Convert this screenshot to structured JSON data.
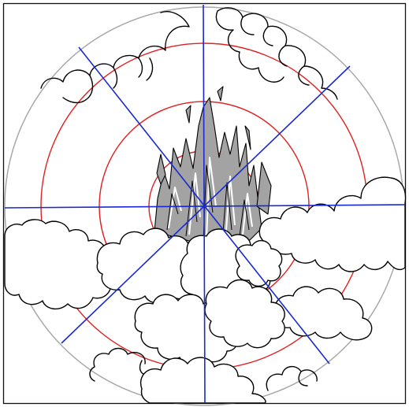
{
  "diagram": {
    "colors": {
      "background": "#ffffff",
      "frame": "#111111",
      "outer_circle": "#a8a8a8",
      "rings": "#e02020",
      "spokes": "#1a2ad0",
      "flame_fill": "#a3a3a3",
      "outline": "#000000",
      "cloud_fill": "#ffffff"
    },
    "ring_count": 3,
    "spoke_count": 8,
    "icons": [
      "flame-icon",
      "cloud-icon"
    ]
  }
}
